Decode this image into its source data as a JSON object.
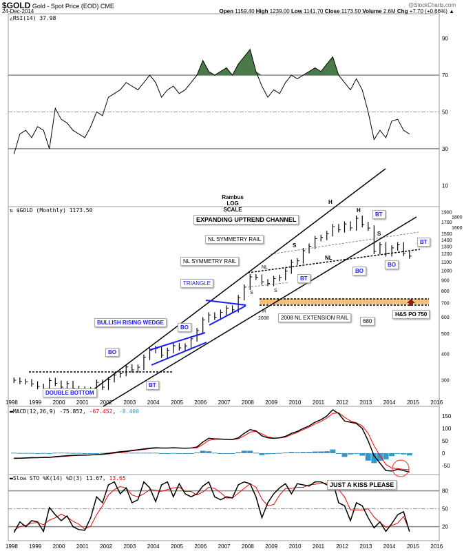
{
  "header": {
    "symbol": "$GOLD",
    "name": "Gold - Spot Price (EOD)",
    "exchange": "CME",
    "date": "24-Dec-2014",
    "watermark": "@StockCharts.com",
    "open_label": "Open",
    "open": "1159.40",
    "high_label": "High",
    "high": "1239.00",
    "low_label": "Low",
    "low": "1141.70",
    "close_label": "Close",
    "close": "1173.50",
    "volume_label": "Volume",
    "volume": "2.6M",
    "chg_label": "Chg",
    "chg": "+7.70 (+0.66%)"
  },
  "colors": {
    "macd": "#000000",
    "signal": "#ff0000",
    "histogram": "#3399cc",
    "rsi_fill": "#4a7a4a",
    "wedge": "#1a1aff",
    "band": "#f6c07a"
  },
  "annotations": {
    "rambus": "Rambus",
    "log_scale": "LOG SCALE",
    "channel": "EXPANDING UPTREND CHANNEL",
    "nl_sym1": "NL SYMMETRY RAIL",
    "nl_sym2": "NL SYMMETRY RAIL",
    "triangle": "TRIANGLE",
    "wedge": "BULLISH RISING WEDGE",
    "bo1": "BO",
    "bo2": "BO",
    "bt1": "BT",
    "double_bottom": "DOUBLE BOTTOM",
    "ext_rail": "2008 NL EXTENSION RAIL",
    "v680": "680",
    "hs_po": "H&S PO 750",
    "bt2": "BT",
    "bo3": "BO",
    "bt3": "BT",
    "bt4": "BT",
    "bo4": "BO",
    "h1": "H",
    "h2": "H",
    "s1": "S",
    "s2": "S",
    "nl1": "NL",
    "nl2": "NL",
    "s3": "S",
    "s4": "S",
    "h3": "H",
    "y2008": "2008",
    "kiss": "JUST A KISS PLEASE"
  },
  "chart_data": [
    {
      "type": "line",
      "title": "RSI(14) 37.98",
      "ylim": [
        0,
        100
      ],
      "ticks": [
        10,
        30,
        50,
        70,
        90
      ],
      "overbought": 70,
      "oversold": 30,
      "mid": 50,
      "x_start": "1998-Q1",
      "frequency": "quarterly",
      "values": [
        27,
        38,
        40,
        36,
        42,
        40,
        30,
        52,
        46,
        44,
        40,
        38,
        36,
        42,
        50,
        48,
        58,
        60,
        62,
        66,
        64,
        62,
        66,
        70,
        66,
        58,
        62,
        64,
        60,
        62,
        66,
        70,
        78,
        72,
        70,
        72,
        74,
        70,
        76,
        80,
        84,
        72,
        64,
        58,
        62,
        60,
        66,
        70,
        68,
        70,
        72,
        74,
        72,
        76,
        80,
        70,
        66,
        62,
        68,
        62,
        50,
        35,
        40,
        36,
        45,
        46,
        40,
        38
      ]
    },
    {
      "type": "ohlc",
      "title": "$GOLD (Monthly) 1173.50",
      "scale": "log",
      "ylim": [
        250,
        2000
      ],
      "ticks": [
        300,
        400,
        500,
        600,
        700,
        800,
        900,
        1000,
        1100,
        1200,
        1300,
        1400,
        1500,
        1600,
        1700,
        1800,
        1900
      ],
      "x_ticks": [
        "1998",
        "1999",
        "2000",
        "2001",
        "2002",
        "2003",
        "2004",
        "2005",
        "2006",
        "2007",
        "2008",
        "2009",
        "2010",
        "2011",
        "2012",
        "2013",
        "2014",
        "2015",
        "2016"
      ],
      "x_start": "1998-Q1",
      "frequency": "quarterly",
      "close": [
        300,
        296,
        295,
        288,
        280,
        262,
        299,
        290,
        278,
        289,
        274,
        272,
        258,
        270,
        293,
        278,
        302,
        318,
        323,
        347,
        336,
        346,
        386,
        416,
        425,
        395,
        416,
        438,
        428,
        437,
        473,
        517,
        582,
        614,
        599,
        632,
        662,
        650,
        743,
        834,
        933,
        930,
        884,
        869,
        916,
        927,
        995,
        1096,
        1113,
        1244,
        1307,
        1421,
        1439,
        1500,
        1620,
        1565,
        1668,
        1598,
        1776,
        1657,
        1595,
        1234,
        1327,
        1202,
        1283,
        1327,
        1210,
        1173
      ]
    },
    {
      "type": "line",
      "title": "MACD(12,26,9)",
      "last": {
        "macd": "-75.852",
        "signal": "-67.452",
        "histogram": "-8.400"
      },
      "ylim": [
        -90,
        180
      ],
      "ticks": [
        -50,
        0,
        50,
        100,
        150
      ],
      "series": [
        {
          "name": "MACD",
          "values": [
            -20,
            -20,
            -19,
            -18,
            -18,
            -17,
            -17,
            -14,
            -12,
            -10,
            -9,
            -8,
            -8,
            -7,
            -6,
            -4,
            -1,
            3,
            6,
            8,
            11,
            14,
            17,
            20,
            22,
            21,
            21,
            22,
            21,
            20,
            21,
            25,
            45,
            60,
            58,
            57,
            56,
            55,
            62,
            80,
            95,
            90,
            70,
            62,
            60,
            62,
            68,
            80,
            88,
            100,
            110,
            125,
            135,
            150,
            175,
            160,
            130,
            125,
            120,
            100,
            50,
            -10,
            -40,
            -70,
            -72,
            -65,
            -70,
            -76
          ]
        },
        {
          "name": "Signal",
          "values": [
            -22,
            -21,
            -20,
            -19,
            -18,
            -18,
            -17,
            -16,
            -14,
            -12,
            -10,
            -9,
            -8,
            -7,
            -6,
            -5,
            -3,
            0,
            3,
            6,
            9,
            12,
            15,
            18,
            20,
            21,
            21,
            21,
            21,
            21,
            21,
            22,
            35,
            52,
            56,
            57,
            56,
            55,
            58,
            70,
            85,
            88,
            78,
            66,
            61,
            61,
            65,
            75,
            84,
            95,
            105,
            118,
            128,
            142,
            160,
            163,
            145,
            130,
            123,
            110,
            80,
            30,
            -10,
            -45,
            -60,
            -62,
            -65,
            -67
          ]
        },
        {
          "name": "Histogram",
          "values": [
            2,
            1,
            1,
            1,
            0,
            1,
            0,
            2,
            2,
            2,
            1,
            1,
            0,
            0,
            0,
            1,
            2,
            3,
            3,
            2,
            2,
            2,
            2,
            2,
            2,
            0,
            0,
            1,
            0,
            -1,
            0,
            3,
            10,
            8,
            2,
            0,
            0,
            0,
            4,
            10,
            10,
            2,
            -8,
            -4,
            -1,
            1,
            3,
            5,
            4,
            5,
            5,
            7,
            7,
            8,
            15,
            -3,
            -15,
            -5,
            -3,
            -10,
            -30,
            -40,
            -30,
            -25,
            -12,
            -3,
            -5,
            -9
          ]
        }
      ]
    },
    {
      "type": "line",
      "title": "Slow STO %K(14) %D(3)",
      "last": {
        "k": "11.67",
        "d": "13.65"
      },
      "ylim": [
        0,
        100
      ],
      "ticks": [
        20,
        50,
        80
      ],
      "series": [
        {
          "name": "%K",
          "values": [
            10,
            28,
            20,
            30,
            28,
            12,
            52,
            40,
            30,
            38,
            20,
            15,
            14,
            35,
            70,
            60,
            90,
            95,
            75,
            85,
            60,
            65,
            95,
            85,
            62,
            90,
            95,
            70,
            92,
            75,
            70,
            75,
            88,
            95,
            70,
            65,
            70,
            68,
            90,
            95,
            92,
            70,
            35,
            60,
            75,
            85,
            92,
            75,
            92,
            90,
            88,
            95,
            95,
            90,
            95,
            60,
            55,
            30,
            60,
            55,
            35,
            18,
            28,
            12,
            25,
            40,
            45,
            11.67
          ]
        },
        {
          "name": "%D",
          "values": [
            14,
            20,
            22,
            26,
            27,
            23,
            31,
            35,
            41,
            36,
            29,
            24,
            16,
            21,
            40,
            55,
            73,
            82,
            87,
            85,
            73,
            70,
            75,
            82,
            81,
            79,
            82,
            85,
            86,
            79,
            79,
            73,
            78,
            86,
            84,
            77,
            68,
            68,
            76,
            84,
            92,
            86,
            66,
            55,
            57,
            73,
            84,
            84,
            86,
            86,
            90,
            91,
            93,
            93,
            93,
            82,
            70,
            48,
            48,
            48,
            50,
            36,
            27,
            19,
            22,
            26,
            37,
            13.65
          ]
        }
      ]
    }
  ]
}
